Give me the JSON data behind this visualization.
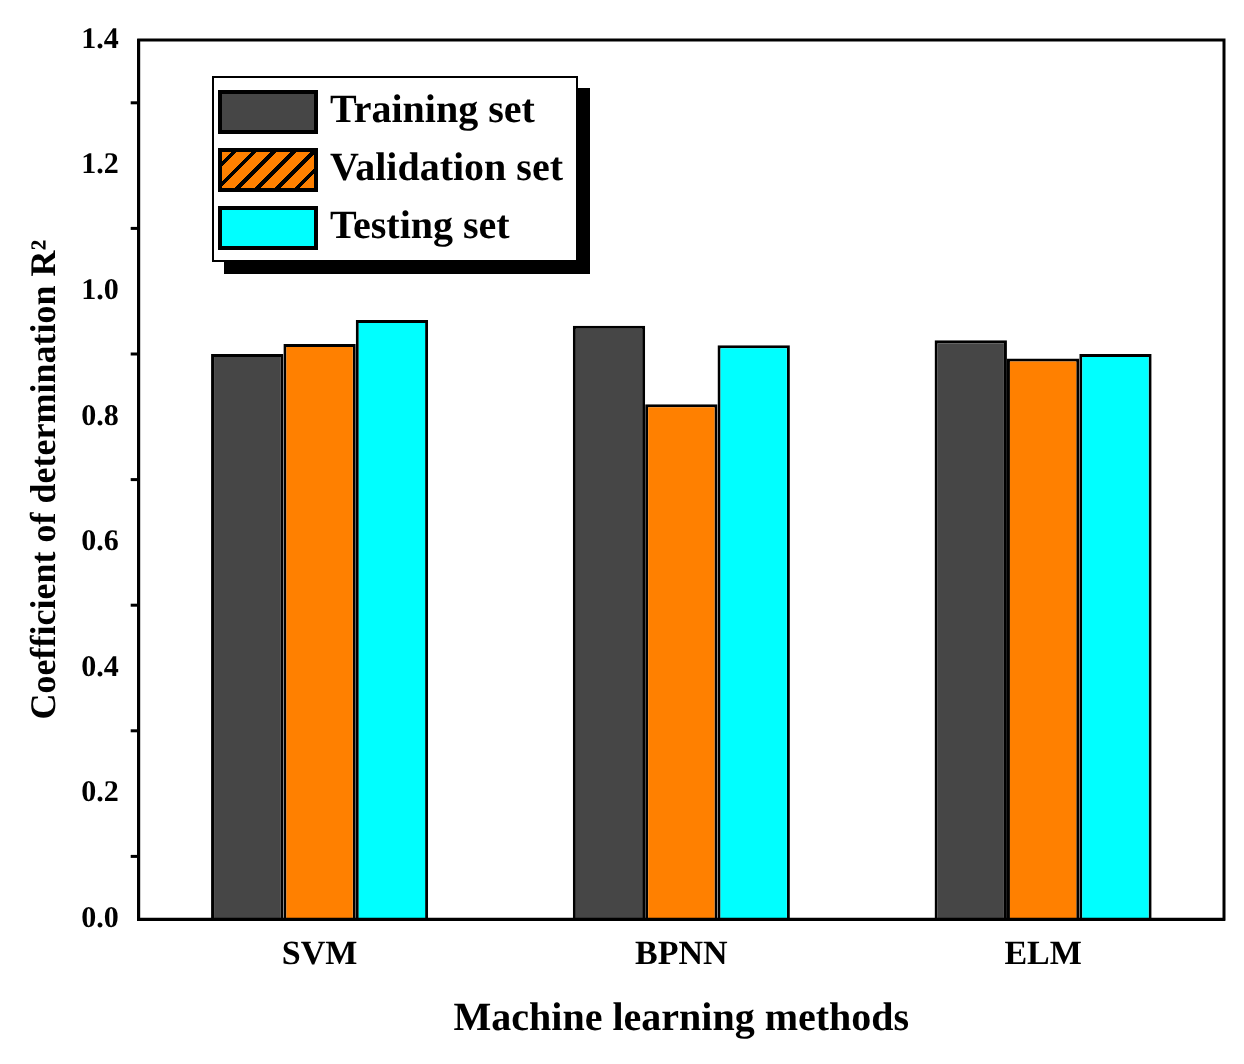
{
  "chart_data": {
    "type": "bar",
    "xlabel": "Machine learning methods",
    "ylabel": "Coefficient of determination R²",
    "categories": [
      "SVM",
      "BPNN",
      "ELM"
    ],
    "series": [
      {
        "name": "Training set",
        "color": "#464646",
        "values": [
          0.9,
          0.945,
          0.922
        ]
      },
      {
        "name": "Validation set",
        "color": "#ff8000",
        "values": [
          0.916,
          0.82,
          0.893
        ]
      },
      {
        "name": "Testing set",
        "color": "#00ffff",
        "values": [
          0.954,
          0.914,
          0.9
        ]
      }
    ],
    "ylim": [
      0,
      1.4
    ],
    "yticks": [
      {
        "value": 0,
        "label": "0.0"
      },
      0.2,
      0.4,
      0.6,
      0.8,
      {
        "value": 1,
        "label": "1.0"
      },
      1.2,
      1.4
    ],
    "grid": false,
    "legend": "top left"
  }
}
